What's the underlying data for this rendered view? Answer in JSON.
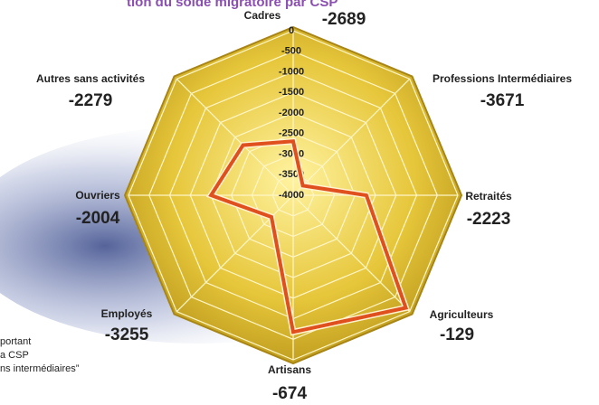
{
  "chart_data": {
    "type": "radar",
    "title": "tion du solde migratoire par CSP",
    "categories": [
      "Cadres",
      "Professions Intermédiaires",
      "Retraités",
      "Agriculteurs",
      "Artisans",
      "Employés",
      "Ouvriers",
      "Autres sans activités"
    ],
    "values": [
      -2689,
      -3671,
      -2223,
      -129,
      -674,
      -3255,
      -2004,
      -2279
    ],
    "color": "#e0501e",
    "ylim": [
      -4000,
      0
    ],
    "yticks": [
      0,
      -500,
      -1000,
      -1500,
      -2000,
      -2500,
      -3000,
      -3500,
      -4000
    ],
    "grid": true,
    "notes": [
      "portant",
      "a CSP",
      "ns intermédiaires”"
    ]
  }
}
